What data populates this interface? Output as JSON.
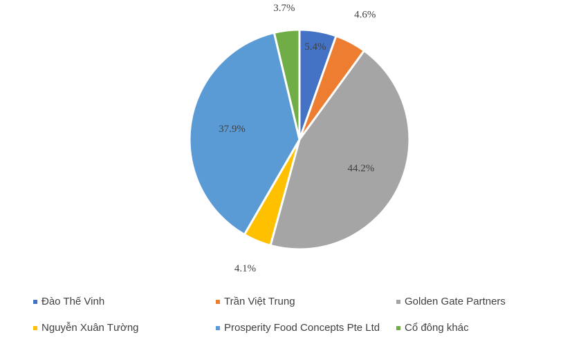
{
  "chart_data": {
    "type": "pie",
    "title": "",
    "slices": [
      {
        "label": "Đào Thế Vinh",
        "value": 5.4,
        "display": "5.4%",
        "color": "#4472C4"
      },
      {
        "label": "Trần Việt Trung",
        "value": 4.6,
        "display": "4.6%",
        "color": "#ED7D31"
      },
      {
        "label": "Golden Gate Partners",
        "value": 44.2,
        "display": "44.2%",
        "color": "#A5A5A5"
      },
      {
        "label": "Nguyễn Xuân Tường",
        "value": 4.1,
        "display": "4.1%",
        "color": "#FFC000"
      },
      {
        "label": "Prosperity Food Concepts Pte Ltd",
        "value": 37.9,
        "display": "37.9%",
        "color": "#5B9BD5"
      },
      {
        "label": "Cổ đông khác",
        "value": 3.7,
        "display": "3.7%",
        "color": "#70AD47"
      }
    ],
    "legend_position": "bottom"
  }
}
